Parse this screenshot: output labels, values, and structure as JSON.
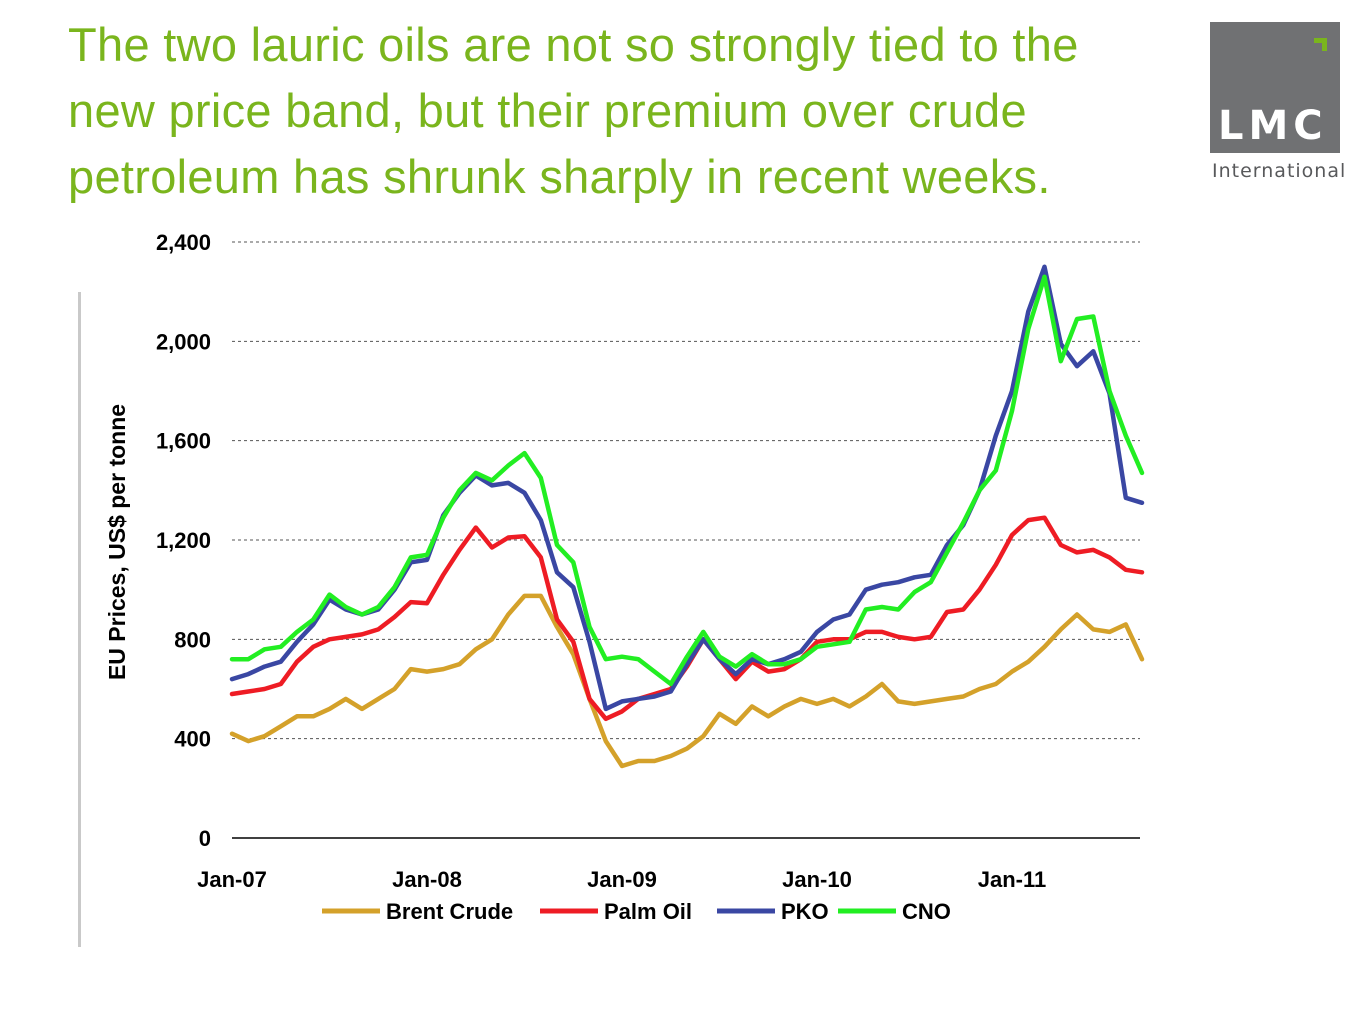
{
  "title": {
    "line1": "The two lauric oils are not so strongly tied to the",
    "line2": "new price band, but their premium over crude",
    "line3": "petroleum has shrunk sharply in recent weeks."
  },
  "logo": {
    "brand": "LMC",
    "sub": "International",
    "box_color": "#707173",
    "accent_color": "#7ab51d"
  },
  "chart_data": {
    "type": "line",
    "title": "",
    "xlabel": "",
    "ylabel": "EU Prices, US$ per tonne",
    "ylim": [
      0,
      2400
    ],
    "yticks": [
      0,
      400,
      800,
      1200,
      1600,
      2000,
      2400
    ],
    "ytick_labels": [
      "0",
      "400",
      "800",
      "1,200",
      "1,600",
      "2,000",
      "2,400"
    ],
    "x_start": "Jan-07",
    "x_frequency": "monthly",
    "xtick_labels": [
      "Jan-07",
      "Jan-08",
      "Jan-09",
      "Jan-10",
      "Jan-11"
    ],
    "grid": "horizontal dashed",
    "legend_position": "bottom",
    "series": [
      {
        "name": "Brent Crude",
        "color": "#d4a12a",
        "values": [
          420,
          390,
          410,
          450,
          490,
          490,
          520,
          560,
          520,
          560,
          600,
          680,
          670,
          680,
          700,
          760,
          800,
          900,
          975,
          975,
          850,
          740,
          560,
          390,
          290,
          310,
          310,
          330,
          360,
          410,
          500,
          460,
          530,
          490,
          530,
          560,
          540,
          560,
          530,
          570,
          620,
          550,
          540,
          550,
          560,
          570,
          600,
          620,
          670,
          710,
          770,
          840,
          900,
          840,
          830,
          860,
          720
        ]
      },
      {
        "name": "Palm Oil",
        "color": "#ee1c24",
        "values": [
          580,
          590,
          600,
          620,
          710,
          770,
          800,
          810,
          820,
          840,
          890,
          950,
          945,
          1060,
          1160,
          1250,
          1170,
          1210,
          1215,
          1130,
          880,
          790,
          560,
          480,
          510,
          560,
          580,
          600,
          690,
          800,
          720,
          640,
          710,
          670,
          680,
          720,
          790,
          800,
          800,
          830,
          830,
          810,
          800,
          810,
          910,
          920,
          1000,
          1100,
          1220,
          1280,
          1290,
          1180,
          1150,
          1160,
          1130,
          1080,
          1070
        ]
      },
      {
        "name": "PKO",
        "color": "#3a47a3",
        "values": [
          640,
          660,
          690,
          710,
          790,
          860,
          960,
          920,
          900,
          920,
          1000,
          1110,
          1120,
          1300,
          1390,
          1460,
          1420,
          1430,
          1390,
          1280,
          1070,
          1010,
          790,
          520,
          550,
          560,
          570,
          590,
          700,
          800,
          720,
          660,
          720,
          700,
          720,
          750,
          830,
          880,
          900,
          1000,
          1020,
          1030,
          1050,
          1060,
          1180,
          1260,
          1400,
          1620,
          1800,
          2120,
          2300,
          1990,
          1900,
          1960,
          1790,
          1370,
          1350
        ]
      },
      {
        "name": "CNO",
        "color": "#22ee22",
        "values": [
          720,
          720,
          760,
          770,
          830,
          880,
          980,
          930,
          900,
          930,
          1010,
          1130,
          1140,
          1290,
          1400,
          1470,
          1440,
          1500,
          1550,
          1450,
          1180,
          1110,
          850,
          720,
          730,
          720,
          670,
          620,
          730,
          830,
          730,
          690,
          740,
          700,
          700,
          720,
          770,
          780,
          790,
          920,
          930,
          920,
          990,
          1030,
          1150,
          1270,
          1400,
          1480,
          1720,
          2050,
          2260,
          1920,
          2090,
          2100,
          1800,
          1620,
          1470
        ]
      }
    ]
  }
}
